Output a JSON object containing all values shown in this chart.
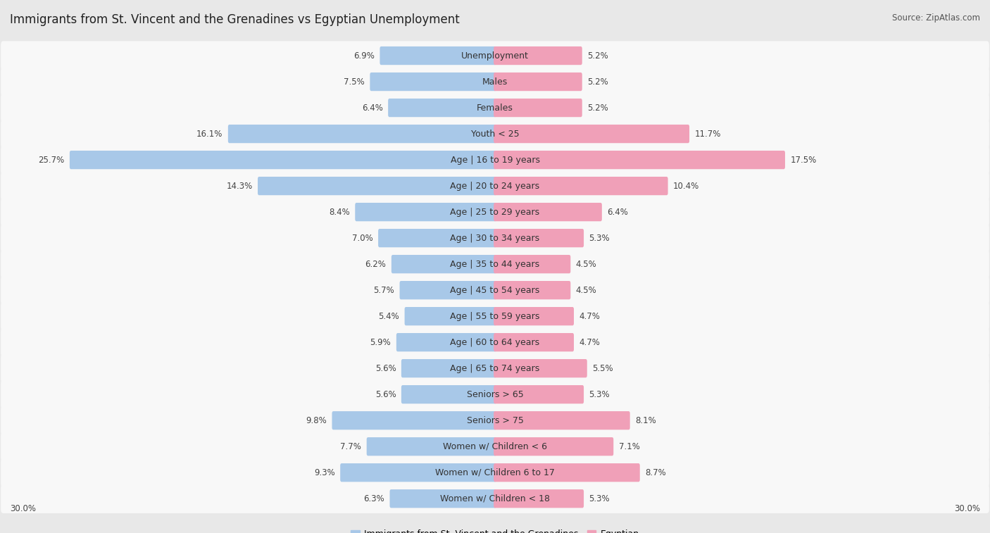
{
  "title": "Immigrants from St. Vincent and the Grenadines vs Egyptian Unemployment",
  "source": "Source: ZipAtlas.com",
  "categories": [
    "Unemployment",
    "Males",
    "Females",
    "Youth < 25",
    "Age | 16 to 19 years",
    "Age | 20 to 24 years",
    "Age | 25 to 29 years",
    "Age | 30 to 34 years",
    "Age | 35 to 44 years",
    "Age | 45 to 54 years",
    "Age | 55 to 59 years",
    "Age | 60 to 64 years",
    "Age | 65 to 74 years",
    "Seniors > 65",
    "Seniors > 75",
    "Women w/ Children < 6",
    "Women w/ Children 6 to 17",
    "Women w/ Children < 18"
  ],
  "left_values": [
    6.9,
    7.5,
    6.4,
    16.1,
    25.7,
    14.3,
    8.4,
    7.0,
    6.2,
    5.7,
    5.4,
    5.9,
    5.6,
    5.6,
    9.8,
    7.7,
    9.3,
    6.3
  ],
  "right_values": [
    5.2,
    5.2,
    5.2,
    11.7,
    17.5,
    10.4,
    6.4,
    5.3,
    4.5,
    4.5,
    4.7,
    4.7,
    5.5,
    5.3,
    8.1,
    7.1,
    8.7,
    5.3
  ],
  "left_color": "#a8c8e8",
  "right_color": "#f0a0b8",
  "left_label": "Immigrants from St. Vincent and the Grenadines",
  "right_label": "Egyptian",
  "axis_max": 30.0,
  "bg_color": "#e8e8e8",
  "row_bg_color": "#f8f8f8",
  "title_fontsize": 12,
  "label_fontsize": 9,
  "value_fontsize": 8.5,
  "legend_fontsize": 9,
  "source_fontsize": 8.5
}
